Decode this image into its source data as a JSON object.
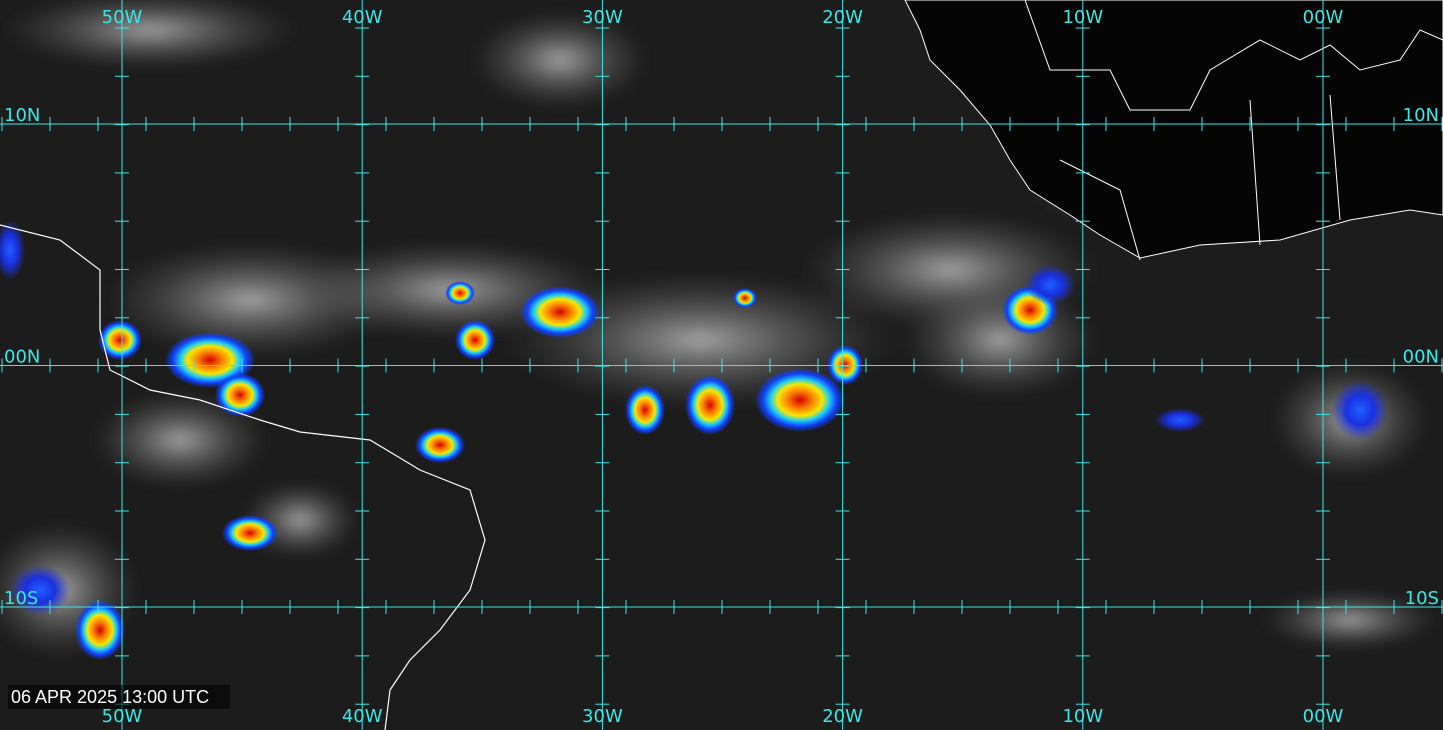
{
  "grid": {
    "longitudes": [
      "50W",
      "40W",
      "30W",
      "20W",
      "10W",
      "00W"
    ],
    "latitudes": [
      "10N",
      "00N",
      "10S"
    ]
  },
  "timestamp": "06 APR 2025 13:00 UTC"
}
